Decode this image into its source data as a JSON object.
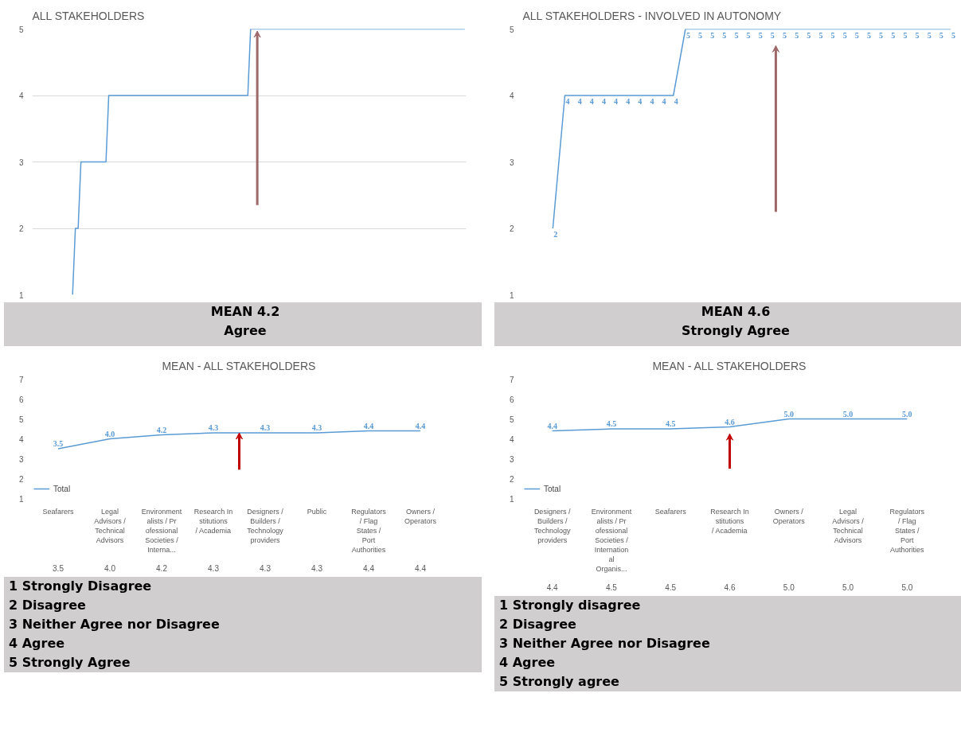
{
  "chart_data": [
    {
      "type": "line",
      "title": "ALL STAKEHOLDERS",
      "categories": [
        null,
        null,
        null,
        null,
        null,
        null,
        null,
        null,
        null,
        null,
        null,
        null,
        null,
        null,
        null,
        null,
        null,
        null,
        null,
        null,
        null,
        null,
        null,
        null,
        null,
        null,
        null,
        null,
        null,
        null,
        null,
        null,
        null,
        null,
        null,
        null,
        null,
        null,
        null,
        null,
        null,
        null,
        null,
        null,
        null,
        null,
        null,
        null,
        null,
        null,
        null,
        null,
        null,
        null,
        null,
        null,
        null,
        null,
        null,
        null,
        null,
        null,
        null,
        null,
        null,
        null,
        null,
        null,
        null,
        null,
        null,
        null,
        null,
        null,
        null,
        null,
        null,
        null,
        null,
        null,
        null,
        null,
        null,
        null,
        null,
        null,
        null,
        null,
        null,
        null,
        null,
        null,
        null,
        null,
        null,
        null,
        null,
        null,
        null,
        null,
        null,
        null,
        null,
        null,
        null,
        null,
        null,
        null,
        null,
        null,
        null,
        null,
        null,
        null,
        null,
        null,
        null,
        null,
        null,
        null,
        null,
        null,
        null,
        null,
        null,
        null,
        null,
        null,
        null,
        null,
        null,
        null,
        null,
        null,
        null,
        null,
        null,
        null,
        null,
        null,
        null,
        null,
        null,
        null,
        null,
        null,
        null,
        null,
        null,
        null,
        null,
        null,
        null,
        null,
        null,
        null
      ],
      "values": [
        null,
        null,
        null,
        null,
        null,
        null,
        null,
        null,
        null,
        null,
        null,
        null,
        null,
        null,
        1,
        2,
        2,
        3,
        3,
        3,
        3,
        3,
        3,
        3,
        3,
        3,
        3,
        4,
        4,
        4,
        4,
        4,
        4,
        4,
        4,
        4,
        4,
        4,
        4,
        4,
        4,
        4,
        4,
        4,
        4,
        4,
        4,
        4,
        4,
        4,
        4,
        4,
        4,
        4,
        4,
        4,
        4,
        4,
        4,
        4,
        4,
        4,
        4,
        4,
        4,
        4,
        4,
        4,
        4,
        4,
        4,
        4,
        4,
        4,
        4,
        4,
        4,
        4,
        5,
        5,
        5,
        5,
        5,
        5,
        5,
        5,
        5,
        5,
        5,
        5,
        5,
        5,
        5,
        5,
        5,
        5,
        5,
        5,
        5,
        5,
        5,
        5,
        5,
        5,
        5,
        5,
        5,
        5,
        5,
        5,
        5,
        5,
        5,
        5,
        5,
        5,
        5,
        5,
        5,
        5,
        5,
        5,
        5,
        5,
        5,
        5,
        5,
        5,
        5,
        5,
        5,
        5,
        5,
        5,
        5,
        5,
        5,
        5,
        5,
        5,
        5,
        5,
        5,
        5,
        5,
        5,
        5,
        5,
        5,
        5,
        5,
        5,
        5,
        5,
        5,
        5
      ],
      "color": "#5b9bd5",
      "ylim": [
        1,
        5
      ],
      "yticks": [
        1,
        2,
        3,
        4,
        5
      ],
      "grid": "y",
      "tick_labels": "y",
      "annotations": [
        "MEAN 4.2",
        "Agree"
      ]
    },
    {
      "type": "line",
      "title": "ALL STAKEHOLDERS - INVOLVED IN AUTONOMY",
      "categories": [
        null,
        null,
        null,
        null,
        null,
        null,
        null,
        null,
        null,
        null,
        null,
        null,
        null,
        null,
        null,
        null,
        null,
        null,
        null,
        null,
        null,
        null,
        null,
        null,
        null,
        null,
        null,
        null,
        null,
        null,
        null,
        null,
        null,
        null,
        null,
        null
      ],
      "values": [
        null,
        null,
        2,
        4,
        4,
        4,
        4,
        4,
        4,
        4,
        4,
        4,
        4,
        5,
        5,
        5,
        5,
        5,
        5,
        5,
        5,
        5,
        5,
        5,
        5,
        5,
        5,
        5,
        5,
        5,
        5,
        5,
        5,
        5,
        5,
        5
      ],
      "color": "#5b9bd5",
      "ylim": [
        1,
        5
      ],
      "yticks": [
        1,
        2,
        3,
        4,
        5
      ],
      "data_labels": true,
      "tick_labels": "y",
      "annotations": [
        "MEAN 4.6",
        "Strongly Agree"
      ]
    },
    {
      "type": "line",
      "title": "MEAN - ALL STAKEHOLDERS",
      "categories": [
        "Seafarers",
        "Legal Advisors / Technical Advisors",
        "Environmentalists / Professional Societies / Interna...",
        "Research Institutions / Academia",
        "Designers / Builders / Technology providers",
        "Public",
        "Regulators / Flag States / Port Authorities",
        "Owners / Operators"
      ],
      "series": [
        {
          "name": "Total",
          "color": "#5b9bd5",
          "values": [
            3.5,
            4.0,
            4.2,
            4.3,
            4.3,
            4.3,
            4.4,
            4.4
          ],
          "value_labels": [
            "3.5",
            "4.0",
            "4.2",
            "4.3",
            "4.3",
            "4.3",
            "4.4",
            "4.4"
          ]
        }
      ],
      "ylim": [
        1,
        7
      ],
      "yticks": [
        1,
        2,
        3,
        4,
        5,
        6,
        7
      ],
      "legend": "bottom left",
      "annotations": [
        "1 Strongly Disagree",
        "2 Disagree",
        "3 Neither Agree nor Disagree",
        "4 Agree",
        "5 Strongly Agree"
      ]
    },
    {
      "type": "line",
      "title": "MEAN - ALL STAKEHOLDERS",
      "categories": [
        "Designers / Builders / Technology providers",
        "Environmentalists / Professional Societies / International Organis...",
        "Seafarers",
        "Research Institutions / Academia",
        "Owners / Operators",
        "Legal Advisors / Technical Advisors",
        "Regulators / Flag States / Port Authorities"
      ],
      "series": [
        {
          "name": "Total",
          "color": "#5b9bd5",
          "values": [
            4.4,
            4.5,
            4.5,
            4.6,
            5.0,
            5.0,
            5.0
          ],
          "value_labels": [
            "4.4",
            "4.5",
            "4.5",
            "4.6",
            "5.0",
            "5.0",
            "5.0"
          ]
        }
      ],
      "ylim": [
        1,
        7
      ],
      "yticks": [
        1,
        2,
        3,
        4,
        5,
        6,
        7
      ],
      "legend": "bottom left",
      "annotations": [
        "1 Strongly disagree",
        "2 Disagree",
        "3 Neither Agree nor Disagree",
        "4 Agree",
        "5 Strongly agree"
      ]
    }
  ]
}
